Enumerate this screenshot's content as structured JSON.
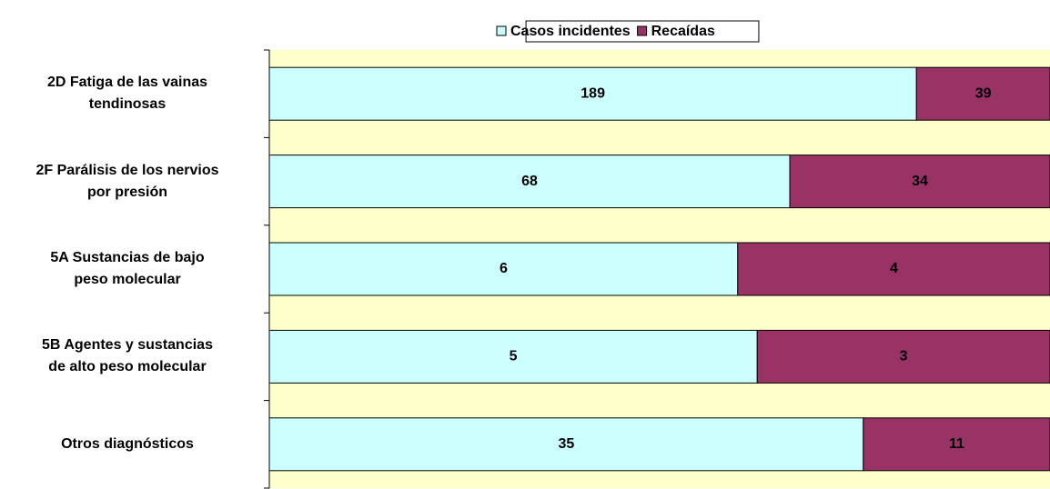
{
  "chart_data": {
    "type": "stacked_bar_100",
    "orientation": "horizontal",
    "categories": [
      "2D Fatiga de las vainas\ntendinosas",
      "2F Parálisis de los nervios\npor presión",
      "5A Sustancias de bajo\npeso molecular",
      "5B Agentes y sustancias\nde alto peso molecular",
      "Otros diagnósticos"
    ],
    "series": [
      {
        "name": "Casos incidentes",
        "color": "#ccffff",
        "values": [
          189,
          68,
          6,
          5,
          35
        ]
      },
      {
        "name": "Recaídas",
        "color": "#993366",
        "values": [
          39,
          34,
          4,
          3,
          11
        ]
      }
    ],
    "background": "#ffffcc",
    "legend": "top"
  }
}
